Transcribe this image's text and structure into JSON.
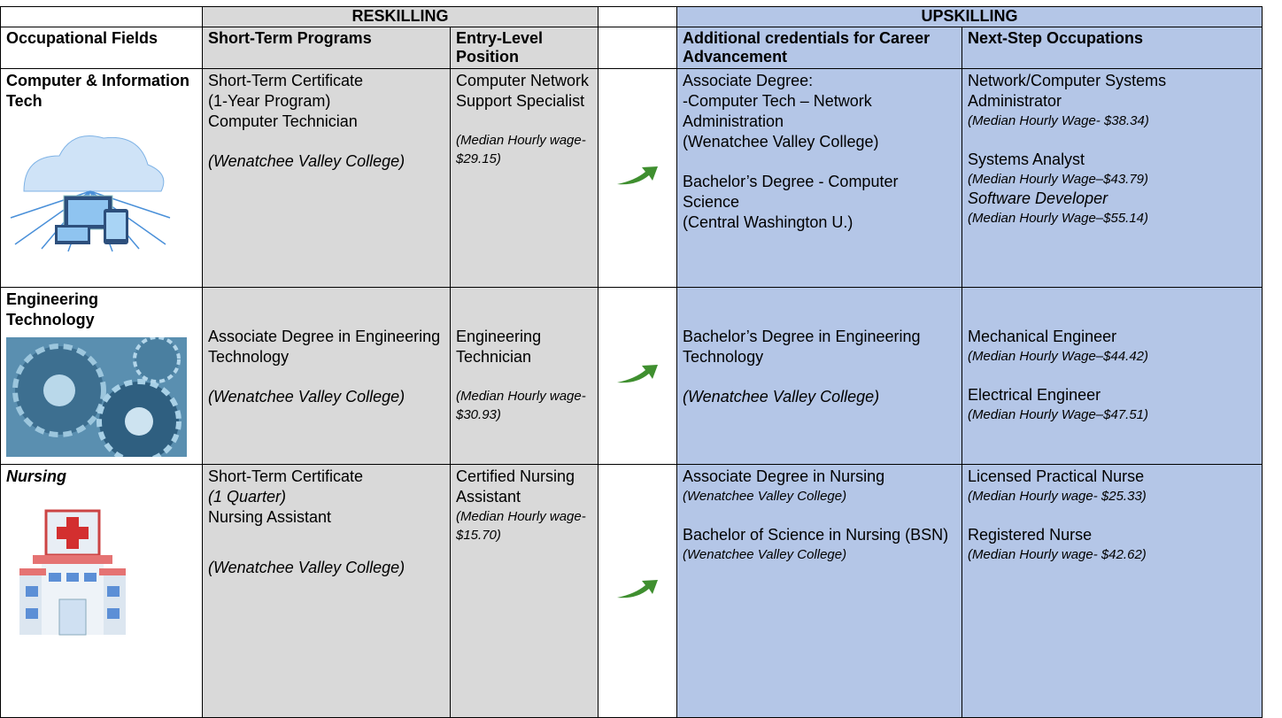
{
  "header": {
    "reskilling": "RESKILLING",
    "upskilling": "UPSKILLING"
  },
  "columns": [
    "Occupational Fields",
    "Short-Term Programs",
    "Entry-Level Position",
    "Additional credentials for Career Advancement",
    "Next-Step Occupations"
  ],
  "rows": [
    {
      "field": "Computer & Information Tech",
      "program": [
        "Short-Term Certificate",
        "(1-Year Program)",
        "Computer Technician",
        "(Wenatchee Valley College)"
      ],
      "entry": [
        "Computer Network Support Specialist",
        "(Median Hourly wage- $29.15)"
      ],
      "credentials": [
        "Associate Degree:",
        "-Computer Tech – Network Administration",
        "(Wenatchee Valley College)",
        "Bachelor’s Degree - Computer Science",
        "(Central Washington U.)"
      ],
      "next": [
        "Network/Computer Systems Administrator",
        "(Median Hourly Wage- $38.34)",
        "Systems Analyst",
        "(Median Hourly Wage–$43.79)",
        "Software Developer",
        "(Median Hourly Wage–$55.14)"
      ]
    },
    {
      "field": "Engineering Technology",
      "program": [
        "Associate Degree in Engineering Technology",
        "(Wenatchee Valley College)"
      ],
      "entry": [
        "Engineering Technician",
        "(Median Hourly wage- $30.93)"
      ],
      "credentials": [
        "Bachelor’s Degree in Engineering Technology",
        "(Wenatchee Valley College)"
      ],
      "next": [
        "Mechanical Engineer",
        "(Median Hourly Wage–$44.42)",
        "Electrical Engineer",
        "(Median Hourly Wage–$47.51)"
      ]
    },
    {
      "field": "Nursing",
      "program": [
        "Short-Term Certificate",
        "(1 Quarter)",
        "Nursing Assistant",
        "(Wenatchee Valley College)"
      ],
      "entry": [
        "Certified Nursing Assistant",
        "(Median Hourly wage- $15.70)"
      ],
      "credentials": [
        "Associate Degree in Nursing",
        "(Wenatchee Valley College)",
        "Bachelor of Science in Nursing (BSN)",
        "(Wenatchee Valley College)"
      ],
      "next": [
        "Licensed Practical Nurse",
        "(Median Hourly wage- $25.33)",
        "Registered Nurse",
        "(Median Hourly wage- $42.62)"
      ]
    }
  ]
}
